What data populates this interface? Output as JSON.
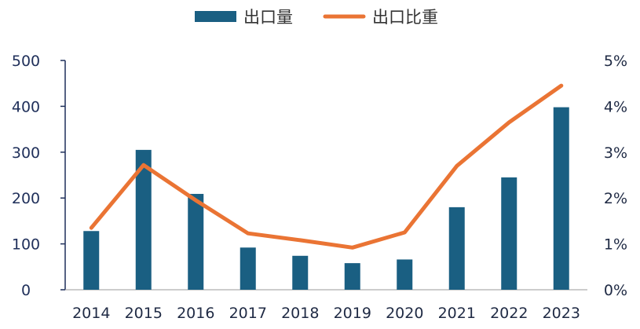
{
  "chart_data": {
    "type": "bar",
    "categories": [
      "2014",
      "2015",
      "2016",
      "2017",
      "2018",
      "2019",
      "2020",
      "2021",
      "2022",
      "2023"
    ],
    "series": [
      {
        "name": "出口量",
        "type": "bar",
        "axis": "left",
        "color": "#1a5f82",
        "values": [
          128,
          305,
          209,
          92,
          74,
          58,
          66,
          180,
          245,
          398
        ]
      },
      {
        "name": "出口比重",
        "type": "line",
        "axis": "right",
        "color": "#ea7434",
        "values": [
          1.35,
          2.72,
          1.95,
          1.23,
          1.08,
          0.92,
          1.25,
          2.7,
          3.65,
          4.45
        ]
      }
    ],
    "y_left": {
      "min": 0,
      "max": 500,
      "ticks": [
        "0",
        "100",
        "200",
        "300",
        "400",
        "500"
      ]
    },
    "y_right": {
      "min": 0,
      "max": 5,
      "ticks": [
        "0%",
        "1%",
        "2%",
        "3%",
        "4%",
        "5%"
      ]
    },
    "legend_position": "top-center",
    "grid": false
  }
}
